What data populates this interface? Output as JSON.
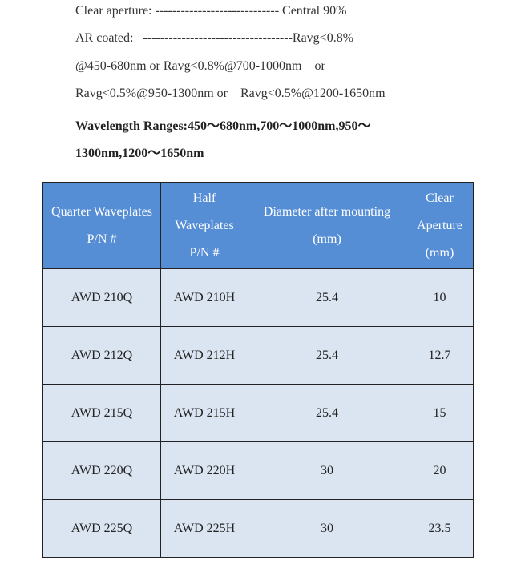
{
  "spec": {
    "clear_aperture": "Clear aperture: ----------------------------- Central 90%",
    "ar_coated_1": "AR coated:   -----------------------------------Ravg<0.8%",
    "ar_coated_2": "@450-680nm or Ravg<0.8%@700-1000nm    or",
    "ar_coated_3": "Ravg<0.5%@950-1300nm or    Ravg<0.5%@1200-1650nm",
    "wavelength_1": "Wavelength Ranges:450～680nm,700～1000nm,950～",
    "wavelength_2": "1300nm,1200～1650nm"
  },
  "table": {
    "headers": [
      "Quarter Waveplates P/N #",
      "Half Waveplates P/N #",
      "Diameter after mounting (mm)",
      "Clear Aperture (mm)"
    ],
    "rows": [
      [
        "AWD 210Q",
        "AWD 210H",
        "25.4",
        "10"
      ],
      [
        "AWD 212Q",
        "AWD 212H",
        "25.4",
        "12.7"
      ],
      [
        "AWD 215Q",
        "AWD 215H",
        "25.4",
        "15"
      ],
      [
        "AWD 220Q",
        "AWD 220H",
        "30",
        "20"
      ],
      [
        "AWD 225Q",
        "AWD 225H",
        "30",
        "23.5"
      ]
    ],
    "header_color": "#558ed5",
    "row_color": "#dbe5f1"
  }
}
